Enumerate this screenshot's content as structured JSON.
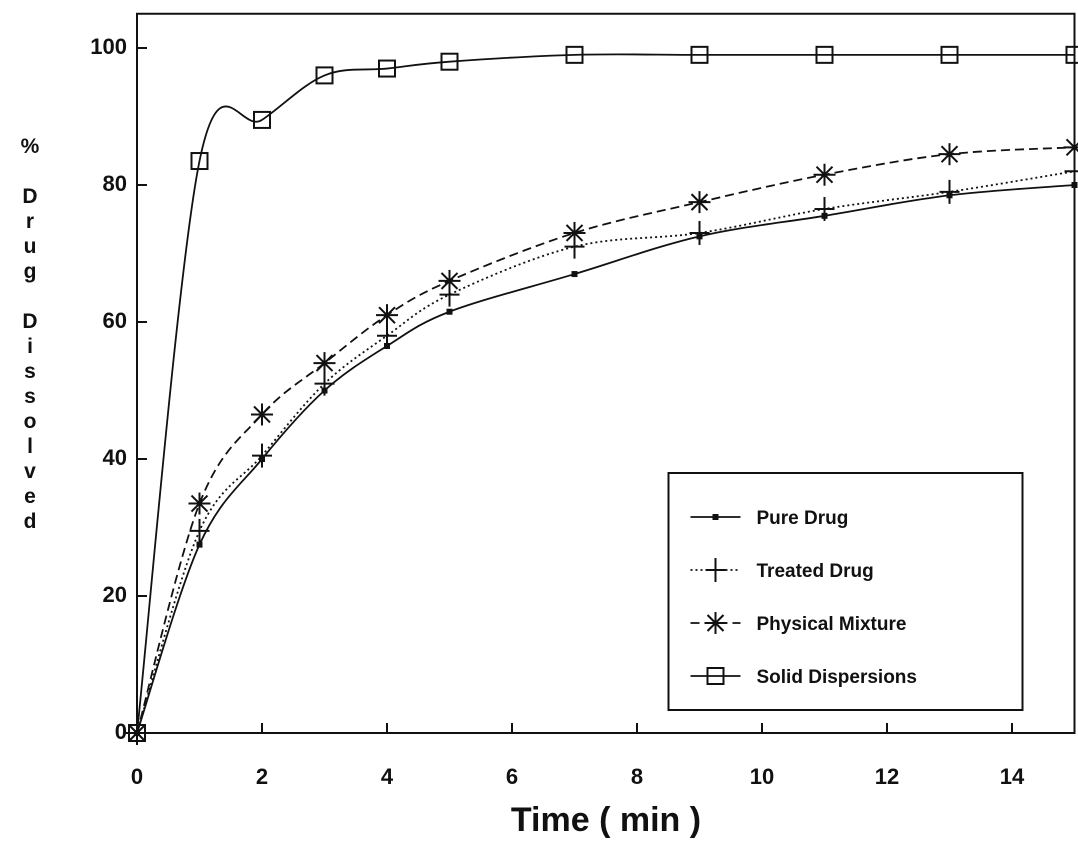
{
  "chart_data": {
    "type": "line",
    "x_label": "Time ( min )",
    "y_label": "% Drug Dissolved",
    "x": [
      0,
      1,
      2,
      3,
      4,
      5,
      7,
      9,
      11,
      13,
      15
    ],
    "series": [
      {
        "name": "Pure Drug",
        "color": "#111111",
        "line_style": "solid",
        "marker": "dot",
        "values": [
          0,
          27.5,
          40,
          50,
          56.5,
          61.5,
          67,
          72.5,
          75.5,
          78.5,
          80
        ]
      },
      {
        "name": "Treated Drug",
        "color": "#111111",
        "line_style": "dotted",
        "marker": "plus",
        "values": [
          0,
          29.5,
          40.5,
          51,
          58,
          64,
          71,
          73,
          76.5,
          79,
          82
        ]
      },
      {
        "name": "Physical Mixture",
        "color": "#111111",
        "line_style": "dashed",
        "marker": "star",
        "values": [
          0,
          33.5,
          46.5,
          54,
          61,
          66,
          73,
          77.5,
          81.5,
          84.5,
          85.5
        ]
      },
      {
        "name": "Solid Dispersions",
        "color": "#111111",
        "line_style": "solid",
        "marker": "square",
        "values": [
          0,
          83.5,
          89.5,
          96,
          97,
          98,
          99,
          99,
          99,
          99,
          99
        ]
      }
    ],
    "xlim": [
      0,
      15
    ],
    "xticks": [
      0,
      2,
      4,
      6,
      8,
      10,
      12,
      14
    ],
    "ylim": [
      0,
      105
    ],
    "yticks": [
      0,
      20,
      40,
      60,
      80,
      100
    ],
    "legend": "lower right"
  }
}
